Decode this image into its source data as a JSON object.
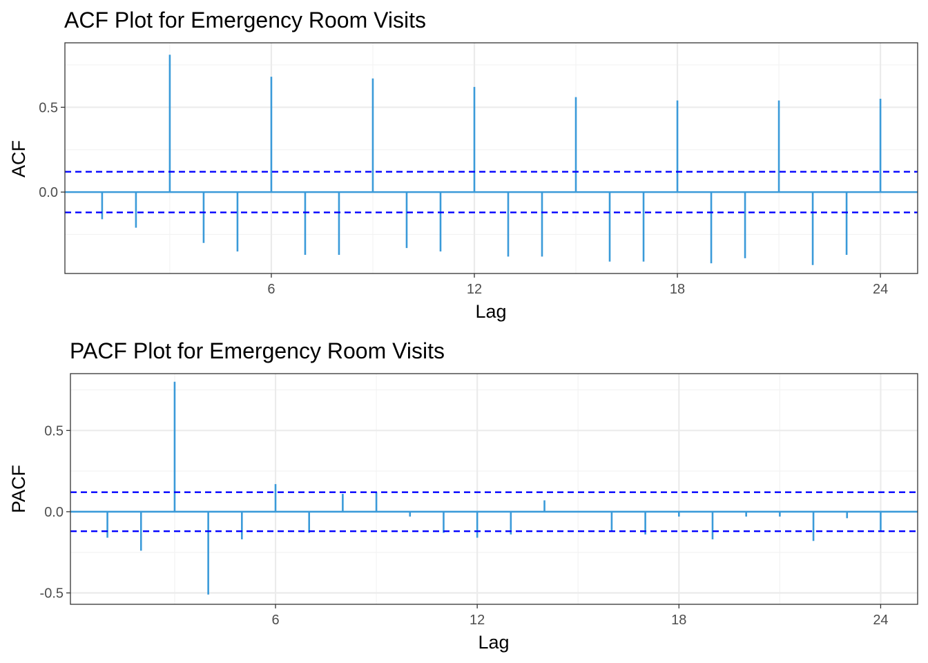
{
  "colors": {
    "bar": "#3a9ad9",
    "ci_line": "#0000ff",
    "grid_major": "#ebebeb",
    "grid_minor": "#f3f3f3",
    "panel_border": "#333333",
    "background": "#ffffff"
  },
  "chart_data": [
    {
      "type": "bar",
      "title": "ACF Plot for Emergency Room Visits",
      "xlabel": "Lag",
      "ylabel": "ACF",
      "x_ticks": [
        6,
        12,
        18,
        24
      ],
      "x_tick_labels": [
        "6",
        "12",
        "18",
        "24"
      ],
      "y_ticks": [
        0.0,
        0.5
      ],
      "y_tick_labels": [
        "0.0",
        "0.5"
      ],
      "xlim": [
        -0.1,
        25.1
      ],
      "ylim": [
        -0.48,
        0.88
      ],
      "ci": 0.12,
      "grid": true,
      "lags": [
        1,
        2,
        3,
        4,
        5,
        6,
        7,
        8,
        9,
        10,
        11,
        12,
        13,
        14,
        15,
        16,
        17,
        18,
        19,
        20,
        21,
        22,
        23,
        24
      ],
      "values": [
        -0.16,
        -0.21,
        0.81,
        -0.3,
        -0.35,
        0.68,
        -0.37,
        -0.37,
        0.67,
        -0.33,
        -0.35,
        0.62,
        -0.38,
        -0.38,
        0.56,
        -0.41,
        -0.41,
        0.54,
        -0.42,
        -0.39,
        0.54,
        -0.43,
        -0.37,
        0.55
      ]
    },
    {
      "type": "bar",
      "title": "PACF Plot for Emergency Room Visits",
      "xlabel": "Lag",
      "ylabel": "PACF",
      "x_ticks": [
        6,
        12,
        18,
        24
      ],
      "x_tick_labels": [
        "6",
        "12",
        "18",
        "24"
      ],
      "y_ticks": [
        -0.5,
        0.0,
        0.5
      ],
      "y_tick_labels": [
        "-0.5",
        "0.0",
        "0.5"
      ],
      "xlim": [
        -0.1,
        25.1
      ],
      "ylim": [
        -0.57,
        0.85
      ],
      "ci": 0.12,
      "grid": true,
      "lags": [
        1,
        2,
        3,
        4,
        5,
        6,
        7,
        8,
        9,
        10,
        11,
        12,
        13,
        14,
        15,
        16,
        17,
        18,
        19,
        20,
        21,
        22,
        23,
        24
      ],
      "values": [
        -0.16,
        -0.24,
        0.8,
        -0.51,
        -0.17,
        0.17,
        -0.13,
        0.11,
        0.12,
        -0.03,
        -0.13,
        -0.16,
        -0.14,
        0.07,
        0.0,
        -0.12,
        -0.14,
        -0.03,
        -0.17,
        -0.03,
        -0.03,
        -0.18,
        -0.04,
        -0.12
      ]
    }
  ]
}
